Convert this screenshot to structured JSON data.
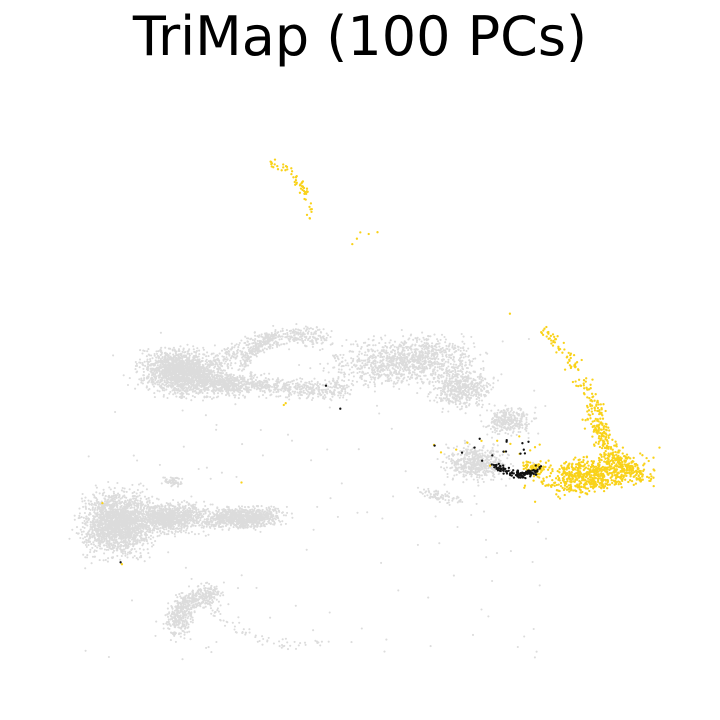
{
  "chart_data": {
    "type": "scatter",
    "title": "TriMap (100 PCs)",
    "xlabel": "",
    "ylabel": "",
    "axes_visible": false,
    "grid": false,
    "legend": "none",
    "xlim": [
      0,
      100
    ],
    "ylim": [
      0,
      100
    ],
    "colors": {
      "background_points": "#dcdcdc",
      "highlight_gold": "#f9d21a",
      "highlight_black": "#111111"
    },
    "series": [
      {
        "color": "#dcdcdc",
        "clusters": [
          {
            "kind": "blob",
            "cx": 22,
            "cy": 52.5,
            "rx": 5.3,
            "ry": 3.0,
            "n": 1800,
            "rot": -5
          },
          {
            "kind": "blob",
            "cx": 29,
            "cy": 50.5,
            "rx": 4.2,
            "ry": 1.5,
            "n": 400,
            "rot": -3
          },
          {
            "kind": "arc",
            "x0": 27,
            "y0": 54,
            "x1": 44,
            "y1": 58,
            "cxp": 36,
            "cyp": 60,
            "w": 1.6,
            "n": 400
          },
          {
            "kind": "arc",
            "x0": 31,
            "y0": 53,
            "x1": 36,
            "y1": 58.5,
            "cxp": 33,
            "cyp": 57,
            "w": 0.7,
            "n": 150
          },
          {
            "kind": "arc",
            "x0": 32,
            "y0": 51,
            "x1": 47,
            "y1": 50,
            "cxp": 40,
            "cyp": 49,
            "w": 1.6,
            "n": 400
          },
          {
            "kind": "blob",
            "cx": 56,
            "cy": 54.5,
            "rx": 9.0,
            "ry": 3.3,
            "n": 1100,
            "rot": 6
          },
          {
            "kind": "blob",
            "cx": 65,
            "cy": 50.0,
            "rx": 4.0,
            "ry": 2.8,
            "n": 500,
            "rot": 0
          },
          {
            "kind": "blob",
            "cx": 72,
            "cy": 44.5,
            "rx": 3.0,
            "ry": 2.0,
            "n": 280,
            "rot": 0
          },
          {
            "kind": "blob",
            "cx": 67,
            "cy": 37.5,
            "rx": 4.2,
            "ry": 2.4,
            "n": 500,
            "rot": 0
          },
          {
            "kind": "blob",
            "cx": 61.5,
            "cy": 32.0,
            "rx": 2.5,
            "ry": 0.9,
            "n": 80,
            "rot": -15
          },
          {
            "kind": "blob",
            "cx": 12,
            "cy": 27.5,
            "rx": 4.5,
            "ry": 4.2,
            "n": 1900,
            "rot": 0
          },
          {
            "kind": "blob",
            "cx": 20,
            "cy": 28.5,
            "rx": 4.8,
            "ry": 2.0,
            "n": 900,
            "rot": 3
          },
          {
            "kind": "blob",
            "cx": 31,
            "cy": 28.5,
            "rx": 5.2,
            "ry": 1.5,
            "n": 900,
            "rot": 2
          },
          {
            "kind": "blob",
            "cx": 20.5,
            "cy": 34.5,
            "rx": 1.2,
            "ry": 0.6,
            "n": 60,
            "rot": 0
          },
          {
            "kind": "arc",
            "x0": 21,
            "y0": 10,
            "x1": 27,
            "y1": 16,
            "cxp": 21,
            "cyp": 15,
            "w": 1.8,
            "n": 550
          },
          {
            "kind": "arc",
            "x0": 26,
            "y0": 14,
            "x1": 44,
            "y1": 8,
            "cxp": 32,
            "cyp": 6,
            "w": 0.8,
            "n": 70
          },
          {
            "kind": "scatter",
            "x0": 6,
            "x1": 78,
            "y0": 5,
            "y1": 60,
            "n": 160
          }
        ]
      },
      {
        "color": "#f9d21a",
        "clusters": [
          {
            "kind": "blob",
            "cx": 85,
            "cy": 35.5,
            "rx": 7.0,
            "ry": 2.4,
            "n": 620,
            "rot": 6
          },
          {
            "kind": "arc",
            "x0": 85,
            "y0": 48,
            "x1": 93,
            "y1": 35,
            "cxp": 86,
            "cyp": 38,
            "w": 1.6,
            "n": 320
          },
          {
            "kind": "arc",
            "x0": 77,
            "y0": 60,
            "x1": 86,
            "y1": 46,
            "cxp": 82,
            "cyp": 55,
            "w": 1.3,
            "n": 90
          },
          {
            "kind": "blob",
            "cx": 76,
            "cy": 36.8,
            "rx": 1.5,
            "ry": 0.8,
            "n": 60,
            "rot": 0
          },
          {
            "kind": "arc",
            "x0": 35,
            "y0": 87,
            "x1": 42,
            "y1": 78,
            "cxp": 41,
            "cyp": 86,
            "w": 0.8,
            "n": 60
          },
          {
            "kind": "scatter",
            "x0": 46,
            "x1": 55,
            "y0": 73,
            "y1": 76,
            "n": 5
          },
          {
            "kind": "scatter",
            "x0": 59,
            "x1": 78,
            "y0": 37,
            "y1": 42,
            "n": 14
          },
          {
            "kind": "points",
            "pts": [
              [
                9.6,
                30.9
              ],
              [
                12.6,
                20.8
              ],
              [
                31.0,
                34.3
              ],
              [
                37.5,
                47.1
              ],
              [
                37.8,
                47.4
              ],
              [
                72.3,
                62.2
              ]
            ]
          }
        ]
      },
      {
        "color": "#111111",
        "clusters": [
          {
            "kind": "arc",
            "x0": 70,
            "y0": 37.2,
            "x1": 77,
            "y1": 36.6,
            "cxp": 73.5,
            "cyp": 34.2,
            "w": 0.7,
            "n": 120
          },
          {
            "kind": "scatter",
            "x0": 64,
            "x1": 76,
            "y0": 37,
            "y1": 42,
            "n": 12
          },
          {
            "kind": "points",
            "pts": [
              [
                12.4,
                21.1
              ],
              [
                46.2,
                46.5
              ],
              [
                44.0,
                50.3
              ],
              [
                60.7,
                40.4
              ],
              [
                71.8,
                41.3
              ],
              [
                74.6,
                39.1
              ]
            ]
          }
        ]
      }
    ]
  }
}
